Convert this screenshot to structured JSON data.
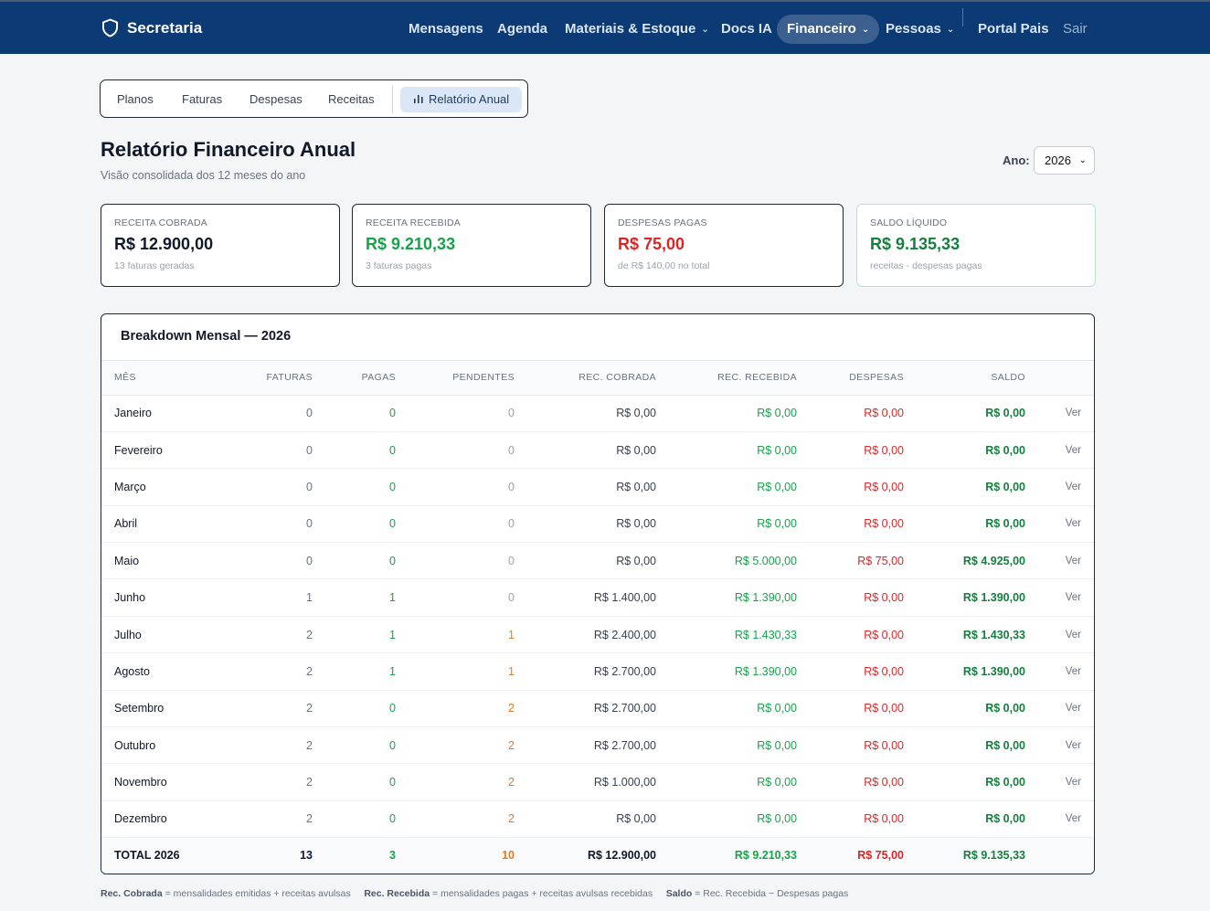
{
  "brand": {
    "name": "Secretaria",
    "icon": "shield-icon"
  },
  "nav": {
    "mensagens": "Mensagens",
    "agenda": "Agenda",
    "materiais": "Materiais & Estoque",
    "docs": "Docs IA",
    "financeiro": "Financeiro",
    "pessoas": "Pessoas",
    "portal": "Portal Pais",
    "sair": "Sair"
  },
  "subtabs": {
    "planos": "Planos",
    "faturas": "Faturas",
    "despesas": "Despesas",
    "receitas": "Receitas",
    "relatorio": "Relatório Anual"
  },
  "header": {
    "title": "Relatório Financeiro Anual",
    "subtitle": "Visão consolidada dos 12 meses do ano",
    "year_label": "Ano:",
    "year_value": "2026"
  },
  "cards": [
    {
      "label": "RECEITA COBRADA",
      "value": "R$ 12.900,00",
      "note": "13 faturas geradas",
      "color": "#111827"
    },
    {
      "label": "RECEITA RECEBIDA",
      "value": "R$ 9.210,33",
      "note": "3 faturas pagas",
      "color": "#16a34a"
    },
    {
      "label": "DESPESAS PAGAS",
      "value": "R$ 75,00",
      "note": "de R$ 140,00 no total",
      "color": "#dc2626"
    },
    {
      "label": "SALDO LÍQUIDO",
      "value": "R$ 9.135,33",
      "note": "receitas - despesas pagas",
      "color": "#15803d"
    }
  ],
  "table": {
    "title": "Breakdown Mensal — 2026",
    "headers": {
      "mes": "MÊS",
      "faturas": "FATURAS",
      "pagas": "PAGAS",
      "pendentes": "PENDENTES",
      "rec_cobrada": "REC. COBRADA",
      "rec_recebida": "REC. RECEBIDA",
      "despesas": "DESPESAS",
      "saldo": "SALDO"
    },
    "rows": [
      {
        "mes": "Janeiro",
        "faturas": "0",
        "pagas": "0",
        "pendentes": "0",
        "rec_cobrada": "R$ 0,00",
        "rec_recebida": "R$ 0,00",
        "despesas": "R$ 0,00",
        "saldo": "R$ 0,00",
        "action": "Ver"
      },
      {
        "mes": "Fevereiro",
        "faturas": "0",
        "pagas": "0",
        "pendentes": "0",
        "rec_cobrada": "R$ 0,00",
        "rec_recebida": "R$ 0,00",
        "despesas": "R$ 0,00",
        "saldo": "R$ 0,00",
        "action": "Ver"
      },
      {
        "mes": "Março",
        "faturas": "0",
        "pagas": "0",
        "pendentes": "0",
        "rec_cobrada": "R$ 0,00",
        "rec_recebida": "R$ 0,00",
        "despesas": "R$ 0,00",
        "saldo": "R$ 0,00",
        "action": "Ver"
      },
      {
        "mes": "Abril",
        "faturas": "0",
        "pagas": "0",
        "pendentes": "0",
        "rec_cobrada": "R$ 0,00",
        "rec_recebida": "R$ 0,00",
        "despesas": "R$ 0,00",
        "saldo": "R$ 0,00",
        "action": "Ver"
      },
      {
        "mes": "Maio",
        "faturas": "0",
        "pagas": "0",
        "pendentes": "0",
        "rec_cobrada": "R$ 0,00",
        "rec_recebida": "R$ 5.000,00",
        "despesas": "R$ 75,00",
        "saldo": "R$ 4.925,00",
        "action": "Ver"
      },
      {
        "mes": "Junho",
        "faturas": "1",
        "pagas": "1",
        "pendentes": "0",
        "rec_cobrada": "R$ 1.400,00",
        "rec_recebida": "R$ 1.390,00",
        "despesas": "R$ 0,00",
        "saldo": "R$ 1.390,00",
        "action": "Ver"
      },
      {
        "mes": "Julho",
        "faturas": "2",
        "pagas": "1",
        "pendentes": "1",
        "rec_cobrada": "R$ 2.400,00",
        "rec_recebida": "R$ 1.430,33",
        "despesas": "R$ 0,00",
        "saldo": "R$ 1.430,33",
        "action": "Ver"
      },
      {
        "mes": "Agosto",
        "faturas": "2",
        "pagas": "1",
        "pendentes": "1",
        "rec_cobrada": "R$ 2.700,00",
        "rec_recebida": "R$ 1.390,00",
        "despesas": "R$ 0,00",
        "saldo": "R$ 1.390,00",
        "action": "Ver"
      },
      {
        "mes": "Setembro",
        "faturas": "2",
        "pagas": "0",
        "pendentes": "2",
        "rec_cobrada": "R$ 2.700,00",
        "rec_recebida": "R$ 0,00",
        "despesas": "R$ 0,00",
        "saldo": "R$ 0,00",
        "action": "Ver"
      },
      {
        "mes": "Outubro",
        "faturas": "2",
        "pagas": "0",
        "pendentes": "2",
        "rec_cobrada": "R$ 2.700,00",
        "rec_recebida": "R$ 0,00",
        "despesas": "R$ 0,00",
        "saldo": "R$ 0,00",
        "action": "Ver"
      },
      {
        "mes": "Novembro",
        "faturas": "2",
        "pagas": "0",
        "pendentes": "2",
        "rec_cobrada": "R$ 1.000,00",
        "rec_recebida": "R$ 0,00",
        "despesas": "R$ 0,00",
        "saldo": "R$ 0,00",
        "action": "Ver"
      },
      {
        "mes": "Dezembro",
        "faturas": "2",
        "pagas": "0",
        "pendentes": "2",
        "rec_cobrada": "R$ 0,00",
        "rec_recebida": "R$ 0,00",
        "despesas": "R$ 0,00",
        "saldo": "R$ 0,00",
        "action": "Ver"
      }
    ],
    "total": {
      "mes": "TOTAL 2026",
      "faturas": "13",
      "pagas": "3",
      "pendentes": "10",
      "rec_cobrada": "R$ 12.900,00",
      "rec_recebida": "R$ 9.210,33",
      "despesas": "R$ 75,00",
      "saldo": "R$ 9.135,33"
    }
  },
  "legend": {
    "rc_term": "Rec. Cobrada",
    "rc_text": "= mensalidades emitidas + receitas avulsas",
    "rr_term": "Rec. Recebida",
    "rr_text": "= mensalidades pagas + receitas avulsas recebidas",
    "saldo_term": "Saldo",
    "saldo_text": "= Rec. Recebida − Despesas pagas"
  }
}
